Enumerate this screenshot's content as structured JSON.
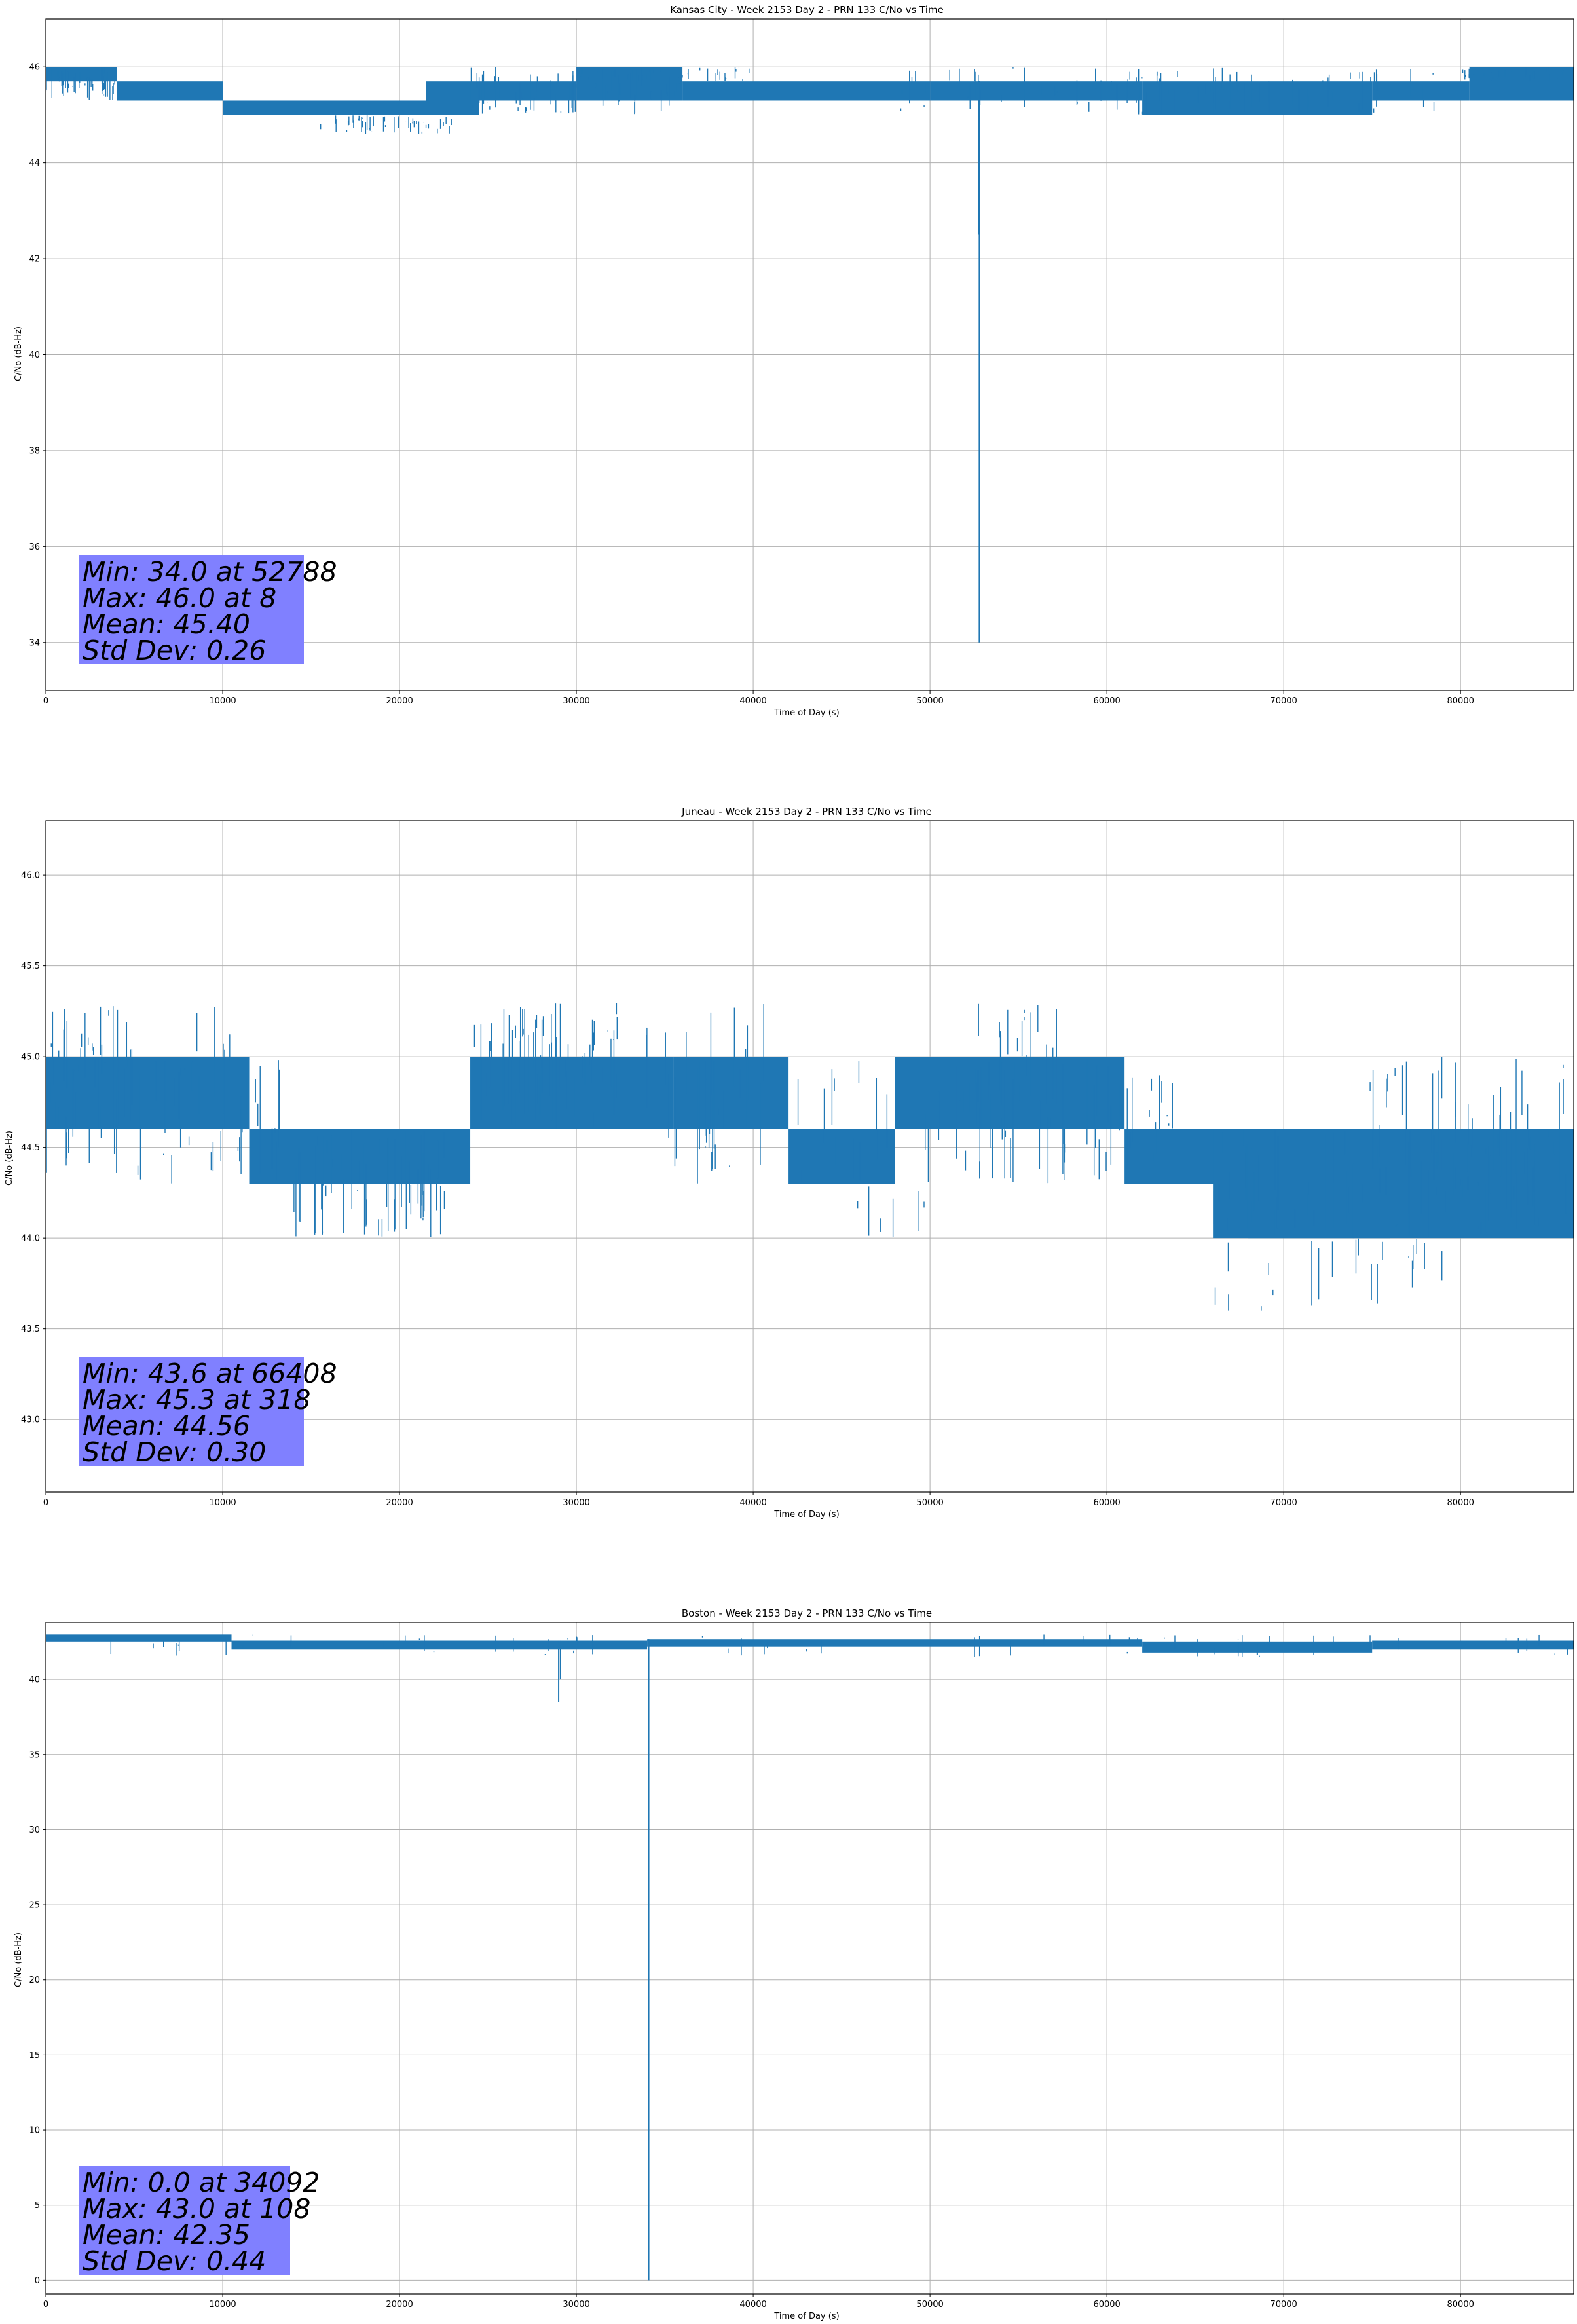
{
  "colors": {
    "series": "#1f77b4",
    "grid": "#b0b0b0",
    "stats_box": "#8080ff"
  },
  "chart_data": [
    {
      "type": "line",
      "title": "Kansas City - Week 2153 Day 2 - PRN 133 C/No vs Time",
      "xlabel": "Time of Day (s)",
      "ylabel": "C/No (dB-Hz)",
      "xlim": [
        0,
        86400
      ],
      "ylim": [
        33.0,
        47.0
      ],
      "xticks": [
        0,
        10000,
        20000,
        30000,
        40000,
        50000,
        60000,
        70000,
        80000
      ],
      "yticks": [
        34,
        36,
        38,
        40,
        42,
        44,
        46
      ],
      "ytick_labels": [
        "34",
        "36",
        "38",
        "40",
        "42",
        "44",
        "46"
      ],
      "grid": true,
      "stats": [
        "Min: 34.0 at 52788",
        "Max: 46.0 at 8",
        "Mean: 45.40",
        "Std Dev: 0.26"
      ],
      "bands": [
        {
          "x0": 0,
          "x1": 4000,
          "lo": 45.7,
          "hi": 46.0
        },
        {
          "x0": 4000,
          "x1": 10000,
          "lo": 45.3,
          "hi": 45.7
        },
        {
          "x0": 10000,
          "x1": 21500,
          "lo": 45.0,
          "hi": 45.3
        },
        {
          "x0": 21500,
          "x1": 24500,
          "lo": 45.0,
          "hi": 45.7
        },
        {
          "x0": 24500,
          "x1": 30000,
          "lo": 45.3,
          "hi": 45.7
        },
        {
          "x0": 30000,
          "x1": 36000,
          "lo": 45.3,
          "hi": 46.0
        },
        {
          "x0": 36000,
          "x1": 50000,
          "lo": 45.3,
          "hi": 45.7
        },
        {
          "x0": 50000,
          "x1": 62000,
          "lo": 45.3,
          "hi": 45.7
        },
        {
          "x0": 62000,
          "x1": 75000,
          "lo": 45.0,
          "hi": 45.7
        },
        {
          "x0": 75000,
          "x1": 80500,
          "lo": 45.3,
          "hi": 45.7
        },
        {
          "x0": 80500,
          "x1": 86400,
          "lo": 45.3,
          "hi": 46.0
        }
      ],
      "spikes": [
        {
          "x": 52788,
          "y": 34.0
        },
        {
          "x": 52800,
          "y": 38.3
        },
        {
          "x": 52760,
          "y": 42.5
        }
      ],
      "spike_seeds": [
        {
          "x0": 0,
          "x1": 4000,
          "lo": 45.3,
          "hi": 46.0,
          "n": 40
        },
        {
          "x0": 15500,
          "x1": 23000,
          "lo": 44.6,
          "hi": 45.0,
          "n": 45
        },
        {
          "x0": 24000,
          "x1": 36000,
          "lo": 45.0,
          "hi": 46.0,
          "n": 60
        },
        {
          "x0": 30000,
          "x1": 40000,
          "lo": 45.7,
          "hi": 46.0,
          "n": 40
        },
        {
          "x0": 47000,
          "x1": 63000,
          "lo": 45.0,
          "hi": 46.0,
          "n": 40
        },
        {
          "x0": 62000,
          "x1": 80000,
          "lo": 45.0,
          "hi": 46.0,
          "n": 50
        },
        {
          "x0": 80000,
          "x1": 86400,
          "lo": 45.7,
          "hi": 46.0,
          "n": 30
        }
      ]
    },
    {
      "type": "line",
      "title": "Juneau - Week 2153 Day 2 - PRN 133 C/No vs Time",
      "xlabel": "Time of Day (s)",
      "ylabel": "C/No (dB-Hz)",
      "xlim": [
        0,
        86400
      ],
      "ylim": [
        42.6,
        46.3
      ],
      "xticks": [
        0,
        10000,
        20000,
        30000,
        40000,
        50000,
        60000,
        70000,
        80000
      ],
      "yticks": [
        43.0,
        43.5,
        44.0,
        44.5,
        45.0,
        45.5,
        46.0
      ],
      "ytick_labels": [
        "43.0",
        "43.5",
        "44.0",
        "44.5",
        "45.0",
        "45.5",
        "46.0"
      ],
      "grid": true,
      "stats": [
        "Min: 43.6 at 66408",
        "Max: 45.3 at 318",
        "Mean: 44.56",
        "Std Dev: 0.30"
      ],
      "bands": [
        {
          "x0": 0,
          "x1": 11500,
          "lo": 44.6,
          "hi": 45.0
        },
        {
          "x0": 11500,
          "x1": 24000,
          "lo": 44.3,
          "hi": 44.6
        },
        {
          "x0": 24000,
          "x1": 35500,
          "lo": 44.6,
          "hi": 45.0
        },
        {
          "x0": 35500,
          "x1": 42000,
          "lo": 44.6,
          "hi": 45.0
        },
        {
          "x0": 42000,
          "x1": 48000,
          "lo": 44.3,
          "hi": 44.6
        },
        {
          "x0": 48000,
          "x1": 61000,
          "lo": 44.6,
          "hi": 45.0
        },
        {
          "x0": 61000,
          "x1": 68000,
          "lo": 44.3,
          "hi": 44.6
        },
        {
          "x0": 68000,
          "x1": 76000,
          "lo": 44.0,
          "hi": 44.3
        },
        {
          "x0": 66000,
          "x1": 86400,
          "lo": 44.0,
          "hi": 44.6
        }
      ],
      "spikes": [],
      "spike_seeds": [
        {
          "x0": 0,
          "x1": 5000,
          "lo": 44.6,
          "hi": 45.3,
          "n": 30
        },
        {
          "x0": 0,
          "x1": 14000,
          "lo": 44.3,
          "hi": 45.0,
          "n": 45
        },
        {
          "x0": 8500,
          "x1": 10500,
          "lo": 44.6,
          "hi": 45.3,
          "n": 8
        },
        {
          "x0": 14000,
          "x1": 22800,
          "lo": 44.0,
          "hi": 44.6,
          "n": 50
        },
        {
          "x0": 24000,
          "x1": 34000,
          "lo": 44.6,
          "hi": 45.3,
          "n": 55
        },
        {
          "x0": 35000,
          "x1": 42000,
          "lo": 44.6,
          "hi": 45.3,
          "n": 12
        },
        {
          "x0": 34000,
          "x1": 61000,
          "lo": 44.3,
          "hi": 45.0,
          "n": 70
        },
        {
          "x0": 44500,
          "x1": 50000,
          "lo": 44.0,
          "hi": 44.3,
          "n": 6
        },
        {
          "x0": 52500,
          "x1": 57500,
          "lo": 44.6,
          "hi": 45.3,
          "n": 25
        },
        {
          "x0": 61000,
          "x1": 64000,
          "lo": 44.3,
          "hi": 45.0,
          "n": 12
        },
        {
          "x0": 66000,
          "x1": 86400,
          "lo": 44.0,
          "hi": 44.6,
          "n": 80
        },
        {
          "x0": 66000,
          "x1": 81000,
          "lo": 43.6,
          "hi": 44.0,
          "n": 20
        },
        {
          "x0": 74500,
          "x1": 86400,
          "lo": 44.3,
          "hi": 45.0,
          "n": 30
        }
      ]
    },
    {
      "type": "line",
      "title": "Boston - Week 2153 Day 2 - PRN 133 C/No vs Time",
      "xlabel": "Time of Day (s)",
      "ylabel": "C/No (dB-Hz)",
      "xlim": [
        0,
        86400
      ],
      "ylim": [
        -0.9,
        43.8
      ],
      "xticks": [
        0,
        10000,
        20000,
        30000,
        40000,
        50000,
        60000,
        70000,
        80000
      ],
      "yticks": [
        0,
        5,
        10,
        15,
        20,
        25,
        30,
        35,
        40
      ],
      "ytick_labels": [
        "0",
        "5",
        "10",
        "15",
        "20",
        "25",
        "30",
        "35",
        "40"
      ],
      "grid": true,
      "stats": [
        "Min: 0.0 at 34092",
        "Max: 43.0 at 108",
        "Mean: 42.35",
        "Std Dev: 0.44"
      ],
      "bands": [
        {
          "x0": 0,
          "x1": 10500,
          "lo": 42.5,
          "hi": 43.0
        },
        {
          "x0": 10500,
          "x1": 34000,
          "lo": 42.0,
          "hi": 42.6
        },
        {
          "x0": 34000,
          "x1": 62000,
          "lo": 42.2,
          "hi": 42.7
        },
        {
          "x0": 62000,
          "x1": 75000,
          "lo": 41.8,
          "hi": 42.5
        },
        {
          "x0": 75000,
          "x1": 86400,
          "lo": 42.0,
          "hi": 42.6
        }
      ],
      "spikes": [
        {
          "x": 34092,
          "y": 0.0
        },
        {
          "x": 34080,
          "y": 24.0
        },
        {
          "x": 29000,
          "y": 38.5
        },
        {
          "x": 29100,
          "y": 40.0
        }
      ],
      "spike_seeds": [
        {
          "x0": 0,
          "x1": 86400,
          "lo": 41.5,
          "hi": 43.0,
          "n": 70
        }
      ]
    }
  ]
}
